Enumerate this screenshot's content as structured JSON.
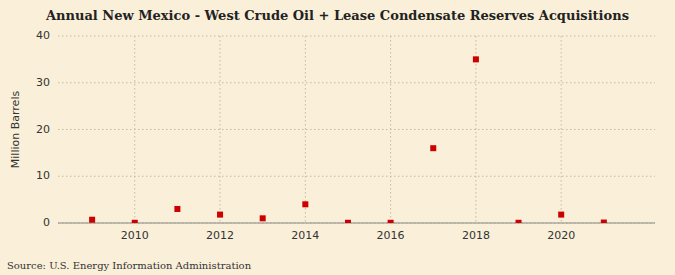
{
  "chart_data": {
    "type": "scatter",
    "title": "Annual New Mexico - West Crude Oil + Lease Condensate Reserves Acquisitions",
    "ylabel": "Million Barrels",
    "source": "Source: U.S. Energy Information Administration",
    "x": [
      2009,
      2010,
      2011,
      2012,
      2013,
      2014,
      2015,
      2016,
      2017,
      2018,
      2019,
      2020,
      2021
    ],
    "values": [
      0.7,
      0.05,
      3.0,
      1.8,
      1.0,
      4.0,
      0.05,
      0.05,
      16.0,
      35.0,
      0.05,
      1.8,
      0.1
    ],
    "color": "#cc0000",
    "marker": "square",
    "xlim": [
      2008.2,
      2022.2
    ],
    "xticks": [
      2010,
      2012,
      2014,
      2016,
      2018,
      2020
    ],
    "ylim": [
      0,
      40
    ],
    "yticks": [
      0,
      10,
      20,
      30,
      40
    ],
    "grid": true
  }
}
